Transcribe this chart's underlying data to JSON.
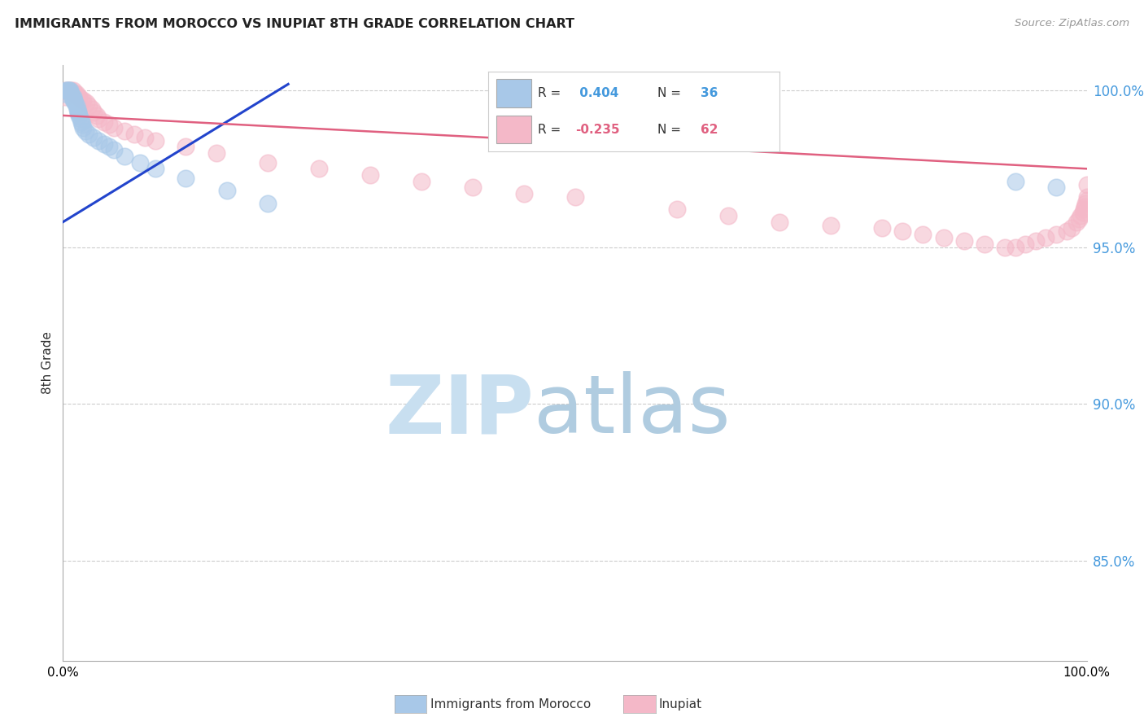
{
  "title": "IMMIGRANTS FROM MOROCCO VS INUPIAT 8TH GRADE CORRELATION CHART",
  "source_text": "Source: ZipAtlas.com",
  "ylabel": "8th Grade",
  "xlim": [
    0.0,
    1.0
  ],
  "ylim": [
    0.818,
    1.008
  ],
  "yticks": [
    0.85,
    0.9,
    0.95,
    1.0
  ],
  "ytick_labels": [
    "85.0%",
    "90.0%",
    "95.0%",
    "100.0%"
  ],
  "xticks": [
    0.0,
    0.2,
    0.4,
    0.6,
    0.8,
    1.0
  ],
  "xtick_labels": [
    "0.0%",
    "",
    "",
    "",
    "",
    "100.0%"
  ],
  "legend_r1": "R =  0.404",
  "legend_n1": "N = 36",
  "legend_r2": "R = -0.235",
  "legend_n2": "N = 62",
  "morocco_color": "#a8c8e8",
  "inupiat_color": "#f4b8c8",
  "trendline_blue": "#2244cc",
  "trendline_pink": "#e06080",
  "watermark_zip_color": "#c8dff0",
  "watermark_atlas_color": "#b0cce0",
  "ytick_color": "#4499dd",
  "morocco_points_x": [
    0.002,
    0.003,
    0.004,
    0.005,
    0.006,
    0.007,
    0.008,
    0.009,
    0.01,
    0.01,
    0.011,
    0.012,
    0.013,
    0.014,
    0.015,
    0.015,
    0.016,
    0.017,
    0.018,
    0.019,
    0.02,
    0.022,
    0.025,
    0.03,
    0.035,
    0.04,
    0.045,
    0.05,
    0.06,
    0.075,
    0.09,
    0.12,
    0.16,
    0.2,
    0.93,
    0.97
  ],
  "morocco_points_y": [
    0.999,
    1.0,
    1.0,
    1.0,
    1.0,
    1.0,
    0.999,
    0.998,
    0.998,
    0.997,
    0.997,
    0.996,
    0.995,
    0.994,
    0.993,
    0.993,
    0.992,
    0.991,
    0.99,
    0.989,
    0.988,
    0.987,
    0.986,
    0.985,
    0.984,
    0.983,
    0.982,
    0.981,
    0.979,
    0.977,
    0.975,
    0.972,
    0.968,
    0.964,
    0.971,
    0.969
  ],
  "inupiat_points_x": [
    0.002,
    0.003,
    0.005,
    0.006,
    0.008,
    0.01,
    0.012,
    0.013,
    0.015,
    0.016,
    0.018,
    0.02,
    0.023,
    0.025,
    0.028,
    0.03,
    0.033,
    0.035,
    0.04,
    0.045,
    0.05,
    0.06,
    0.07,
    0.08,
    0.09,
    0.12,
    0.15,
    0.2,
    0.25,
    0.3,
    0.35,
    0.4,
    0.45,
    0.5,
    0.6,
    0.65,
    0.7,
    0.75,
    0.8,
    0.82,
    0.84,
    0.86,
    0.88,
    0.9,
    0.92,
    0.93,
    0.94,
    0.95,
    0.96,
    0.97,
    0.98,
    0.985,
    0.99,
    0.992,
    0.994,
    0.996,
    0.997,
    0.998,
    0.999,
    1.0,
    1.0,
    1.0
  ],
  "inupiat_points_y": [
    0.998,
    1.0,
    1.0,
    1.0,
    1.0,
    1.0,
    0.999,
    0.999,
    0.998,
    0.998,
    0.997,
    0.997,
    0.996,
    0.995,
    0.994,
    0.993,
    0.992,
    0.991,
    0.99,
    0.989,
    0.988,
    0.987,
    0.986,
    0.985,
    0.984,
    0.982,
    0.98,
    0.977,
    0.975,
    0.973,
    0.971,
    0.969,
    0.967,
    0.966,
    0.962,
    0.96,
    0.958,
    0.957,
    0.956,
    0.955,
    0.954,
    0.953,
    0.952,
    0.951,
    0.95,
    0.95,
    0.951,
    0.952,
    0.953,
    0.954,
    0.955,
    0.956,
    0.958,
    0.959,
    0.96,
    0.961,
    0.962,
    0.963,
    0.964,
    0.965,
    0.966,
    0.97
  ],
  "blue_trend_x": [
    0.0,
    0.22
  ],
  "blue_trend_y": [
    0.958,
    1.002
  ],
  "pink_trend_x": [
    0.0,
    1.0
  ],
  "pink_trend_y": [
    0.992,
    0.975
  ]
}
